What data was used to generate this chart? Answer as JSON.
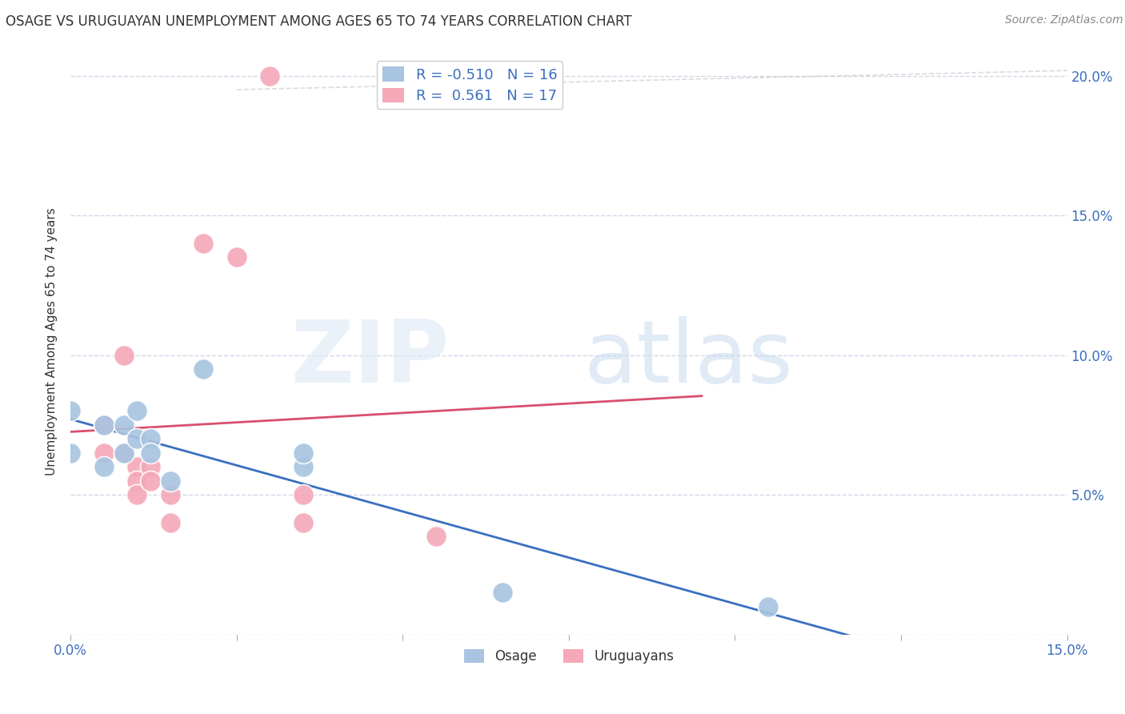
{
  "title": "OSAGE VS URUGUAYAN UNEMPLOYMENT AMONG AGES 65 TO 74 YEARS CORRELATION CHART",
  "source": "Source: ZipAtlas.com",
  "ylabel": "Unemployment Among Ages 65 to 74 years",
  "xlim": [
    0.0,
    0.15
  ],
  "ylim": [
    0.0,
    0.21
  ],
  "xticks": [
    0.0,
    0.025,
    0.05,
    0.075,
    0.1,
    0.125,
    0.15
  ],
  "yticks": [
    0.0,
    0.05,
    0.1,
    0.15,
    0.2
  ],
  "osage_color": "#a8c4e0",
  "uruguayan_color": "#f4a8b8",
  "osage_line_color": "#3a6fbf",
  "uruguayan_line_color": "#d94f6e",
  "osage_R": -0.51,
  "osage_N": 16,
  "uruguayan_R": 0.561,
  "uruguayan_N": 17,
  "osage_points": [
    [
      0.0,
      0.065
    ],
    [
      0.0,
      0.08
    ],
    [
      0.005,
      0.06
    ],
    [
      0.005,
      0.075
    ],
    [
      0.008,
      0.065
    ],
    [
      0.008,
      0.075
    ],
    [
      0.01,
      0.07
    ],
    [
      0.01,
      0.08
    ],
    [
      0.012,
      0.07
    ],
    [
      0.012,
      0.065
    ],
    [
      0.015,
      0.055
    ],
    [
      0.02,
      0.095
    ],
    [
      0.035,
      0.06
    ],
    [
      0.035,
      0.065
    ],
    [
      0.065,
      0.015
    ],
    [
      0.105,
      0.01
    ]
  ],
  "uruguayan_points": [
    [
      0.03,
      0.2
    ],
    [
      0.005,
      0.075
    ],
    [
      0.005,
      0.065
    ],
    [
      0.008,
      0.1
    ],
    [
      0.008,
      0.065
    ],
    [
      0.01,
      0.06
    ],
    [
      0.01,
      0.055
    ],
    [
      0.01,
      0.05
    ],
    [
      0.012,
      0.06
    ],
    [
      0.012,
      0.055
    ],
    [
      0.015,
      0.05
    ],
    [
      0.015,
      0.04
    ],
    [
      0.02,
      0.14
    ],
    [
      0.025,
      0.135
    ],
    [
      0.035,
      0.05
    ],
    [
      0.035,
      0.04
    ],
    [
      0.055,
      0.035
    ]
  ],
  "background_color": "#ffffff",
  "grid_color": "#d0d8e8",
  "legend_fontsize": 13,
  "title_fontsize": 12,
  "axis_label_fontsize": 11
}
